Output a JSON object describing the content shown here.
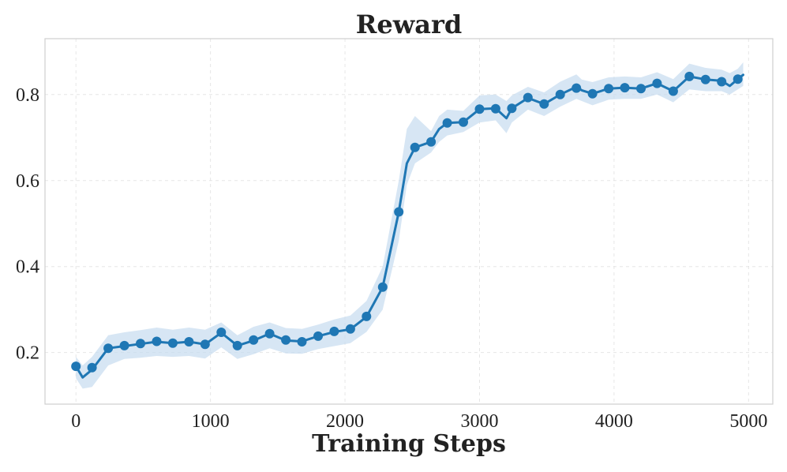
{
  "chart_data": {
    "type": "line",
    "title": "Reward",
    "xlabel": "Training Steps",
    "ylabel": "",
    "xlim": [
      -230,
      5180
    ],
    "ylim": [
      0.08,
      0.93
    ],
    "xticks": [
      0,
      1000,
      2000,
      3000,
      4000,
      5000
    ],
    "xtick_labels": [
      "0",
      "1000",
      "2000",
      "3000",
      "4000",
      "5000"
    ],
    "yticks": [
      0.2,
      0.4,
      0.6,
      0.8
    ],
    "ytick_labels": [
      "0.2",
      "0.4",
      "0.6",
      "0.8"
    ],
    "grid": true,
    "colors": {
      "line": "#1f77b4",
      "band": "#c6dcf0"
    },
    "line": {
      "x": [
        0,
        50,
        120,
        240,
        360,
        480,
        600,
        720,
        840,
        960,
        1080,
        1200,
        1320,
        1440,
        1560,
        1680,
        1800,
        1920,
        2040,
        2160,
        2280,
        2400,
        2460,
        2520,
        2640,
        2700,
        2760,
        2880,
        3000,
        3120,
        3200,
        3240,
        3360,
        3480,
        3600,
        3720,
        3760,
        3840,
        3960,
        4080,
        4200,
        4320,
        4440,
        4560,
        4680,
        4800,
        4860,
        4920,
        4960
      ],
      "y": [
        0.168,
        0.142,
        0.16,
        0.21,
        0.215,
        0.22,
        0.225,
        0.222,
        0.225,
        0.219,
        0.246,
        0.216,
        0.228,
        0.244,
        0.228,
        0.226,
        0.238,
        0.248,
        0.254,
        0.283,
        0.352,
        0.527,
        0.64,
        0.677,
        0.69,
        0.72,
        0.734,
        0.736,
        0.766,
        0.768,
        0.745,
        0.768,
        0.792,
        0.778,
        0.8,
        0.818,
        0.81,
        0.802,
        0.814,
        0.816,
        0.814,
        0.826,
        0.808,
        0.842,
        0.835,
        0.832,
        0.82,
        0.836,
        0.846
      ],
      "band_lower": [
        0.14,
        0.116,
        0.12,
        0.17,
        0.185,
        0.188,
        0.192,
        0.19,
        0.192,
        0.186,
        0.212,
        0.185,
        0.196,
        0.21,
        0.198,
        0.197,
        0.208,
        0.215,
        0.222,
        0.248,
        0.3,
        0.46,
        0.59,
        0.64,
        0.665,
        0.69,
        0.705,
        0.713,
        0.735,
        0.74,
        0.71,
        0.735,
        0.765,
        0.75,
        0.772,
        0.79,
        0.785,
        0.775,
        0.788,
        0.79,
        0.79,
        0.8,
        0.782,
        0.812,
        0.808,
        0.808,
        0.8,
        0.812,
        0.82
      ],
      "band_upper": [
        0.19,
        0.17,
        0.19,
        0.24,
        0.247,
        0.252,
        0.258,
        0.253,
        0.258,
        0.253,
        0.27,
        0.24,
        0.26,
        0.27,
        0.257,
        0.255,
        0.265,
        0.277,
        0.286,
        0.32,
        0.4,
        0.6,
        0.72,
        0.75,
        0.715,
        0.75,
        0.765,
        0.762,
        0.798,
        0.8,
        0.785,
        0.798,
        0.818,
        0.805,
        0.83,
        0.847,
        0.835,
        0.829,
        0.84,
        0.842,
        0.84,
        0.852,
        0.836,
        0.872,
        0.862,
        0.858,
        0.85,
        0.86,
        0.875
      ]
    },
    "markers": {
      "x": [
        0,
        120,
        240,
        360,
        480,
        600,
        720,
        840,
        960,
        1080,
        1200,
        1320,
        1440,
        1560,
        1680,
        1800,
        1920,
        2040,
        2160,
        2280,
        2400,
        2520,
        2640,
        2760,
        2880,
        3000,
        3120,
        3240,
        3360,
        3480,
        3600,
        3720,
        3840,
        3960,
        4080,
        4200,
        4320,
        4440,
        4560,
        4680,
        4800,
        4920
      ],
      "y": [
        0.168,
        0.165,
        0.21,
        0.216,
        0.221,
        0.226,
        0.222,
        0.225,
        0.219,
        0.247,
        0.216,
        0.229,
        0.244,
        0.229,
        0.225,
        0.238,
        0.249,
        0.255,
        0.284,
        0.352,
        0.527,
        0.677,
        0.69,
        0.734,
        0.736,
        0.766,
        0.767,
        0.768,
        0.793,
        0.778,
        0.8,
        0.815,
        0.802,
        0.814,
        0.816,
        0.814,
        0.826,
        0.808,
        0.842,
        0.835,
        0.83,
        0.836
      ]
    }
  }
}
